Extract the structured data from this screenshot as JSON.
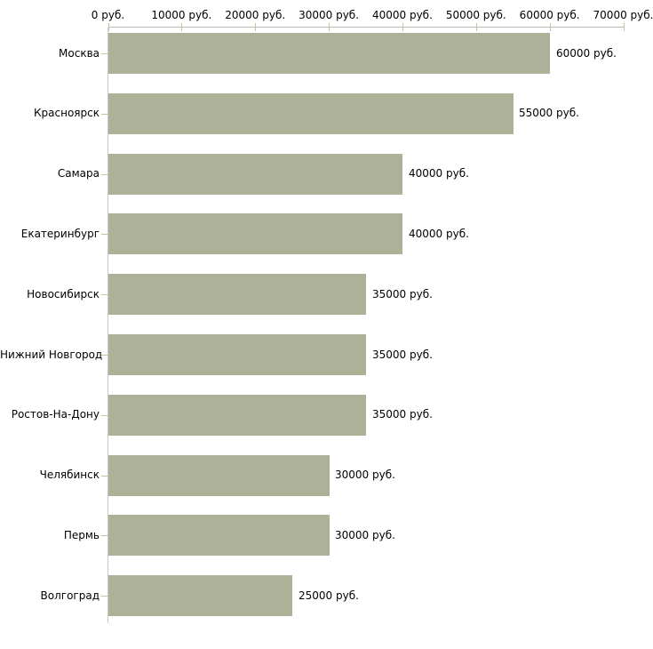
{
  "chart_data": {
    "type": "bar",
    "orientation": "horizontal",
    "title": "",
    "xlabel": "",
    "ylabel": "",
    "unit": "руб.",
    "categories": [
      "Москва",
      "Красноярск",
      "Самара",
      "Екатеринбург",
      "Новосибирск",
      "Нижний Новгород",
      "Ростов-На-Дону",
      "Челябинск",
      "Пермь",
      "Волгоград"
    ],
    "values": [
      60000,
      55000,
      40000,
      40000,
      35000,
      35000,
      35000,
      30000,
      30000,
      25000
    ],
    "value_labels": [
      "60000 руб.",
      "55000 руб.",
      "40000 руб.",
      "40000 руб.",
      "35000 руб.",
      "35000 руб.",
      "35000 руб.",
      "30000 руб.",
      "30000 руб.",
      "25000 руб."
    ],
    "x_ticks": [
      0,
      10000,
      20000,
      30000,
      40000,
      50000,
      60000,
      70000
    ],
    "x_tick_labels": [
      "0 руб.",
      "10000 руб.",
      "20000 руб.",
      "30000 руб.",
      "40000 руб.",
      "50000 руб.",
      "60000 руб.",
      "70000 руб."
    ],
    "xlim": [
      0,
      70000
    ],
    "x_axis_position": "top",
    "grid": false,
    "legend": false,
    "colors": {
      "bar_fill": "#acb198",
      "axis_line_h": "#b9b9b9",
      "axis_line_v": "#c9c9c9",
      "tick_mark": "#c6c29c",
      "text": "#000000",
      "background": "#ffffff"
    }
  }
}
